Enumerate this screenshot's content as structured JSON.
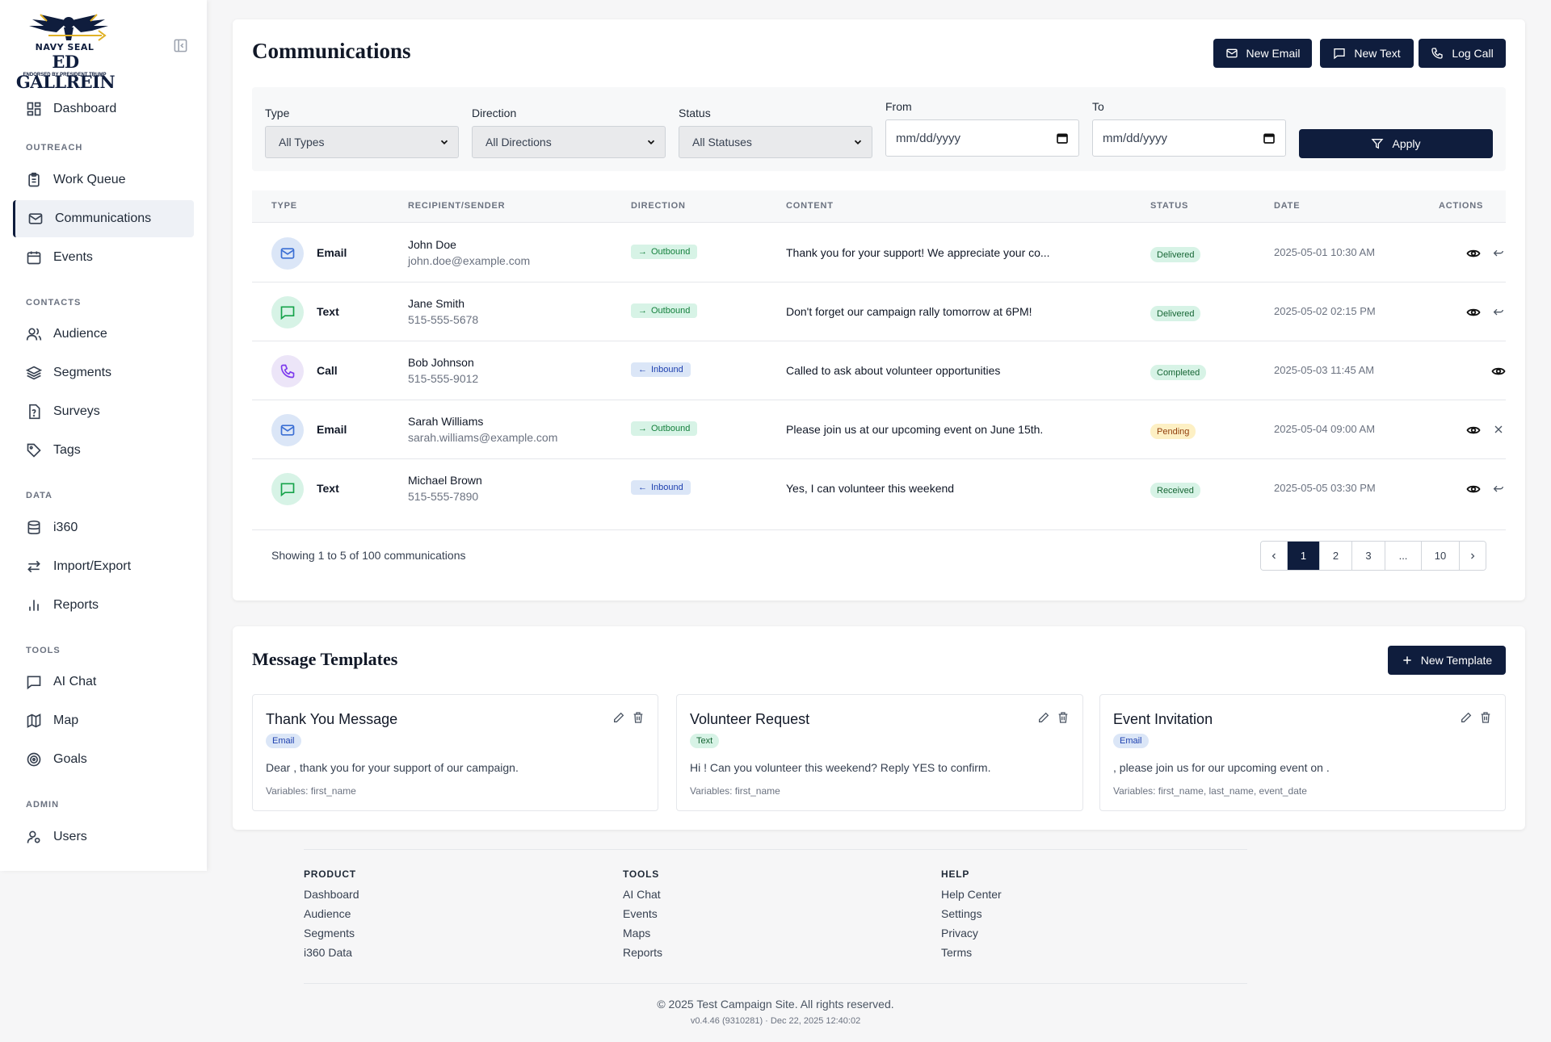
{
  "brand": {
    "line1": "NAVY SEAL",
    "line2": "ED GALLREIN",
    "line3": "ENDORSED BY PRESIDENT TRUMP"
  },
  "sidebar": {
    "items": [
      {
        "label": "Dashboard",
        "icon": "dashboard-icon"
      },
      {
        "label": "Work Queue",
        "icon": "clipboard-icon"
      },
      {
        "label": "Communications",
        "icon": "mail-icon"
      },
      {
        "label": "Events",
        "icon": "calendar-icon"
      },
      {
        "label": "Audience",
        "icon": "users-icon"
      },
      {
        "label": "Segments",
        "icon": "layers-icon"
      },
      {
        "label": "Surveys",
        "icon": "survey-icon"
      },
      {
        "label": "Tags",
        "icon": "tag-icon"
      },
      {
        "label": "i360",
        "icon": "database-icon"
      },
      {
        "label": "Import/Export",
        "icon": "arrows-icon"
      },
      {
        "label": "Reports",
        "icon": "bar-chart-icon"
      },
      {
        "label": "AI Chat",
        "icon": "chat-icon"
      },
      {
        "label": "Map",
        "icon": "map-icon"
      },
      {
        "label": "Goals",
        "icon": "target-icon"
      },
      {
        "label": "Users",
        "icon": "user-cog-icon"
      }
    ],
    "sections": {
      "outreach": "OUTREACH",
      "contacts": "CONTACTS",
      "data": "DATA",
      "tools": "TOOLS",
      "admin": "ADMIN"
    }
  },
  "comm": {
    "title": "Communications",
    "buttons": {
      "new_email": "New Email",
      "new_text": "New Text",
      "log_call": "Log Call"
    },
    "filters": {
      "type_label": "Type",
      "type_value": "All Types",
      "direction_label": "Direction",
      "direction_value": "All Directions",
      "status_label": "Status",
      "status_value": "All Statuses",
      "from_label": "From",
      "from_placeholder": "mm/dd/yyyy",
      "to_label": "To",
      "to_placeholder": "mm/dd/yyyy",
      "apply": "Apply"
    },
    "columns": [
      "TYPE",
      "RECIPIENT/SENDER",
      "DIRECTION",
      "CONTENT",
      "STATUS",
      "DATE",
      "ACTIONS"
    ],
    "rows": [
      {
        "type": "Email",
        "name": "John Doe",
        "sub": "john.doe@example.com",
        "direction": "Outbound",
        "content": "Thank you for your support! We appreciate your co...",
        "status": "Delivered",
        "date": "2025-05-01 10:30 AM"
      },
      {
        "type": "Text",
        "name": "Jane Smith",
        "sub": "515-555-5678",
        "direction": "Outbound",
        "content": "Don't forget our campaign rally tomorrow at 6PM!",
        "status": "Delivered",
        "date": "2025-05-02 02:15 PM"
      },
      {
        "type": "Call",
        "name": "Bob Johnson",
        "sub": "515-555-9012",
        "direction": "Inbound",
        "content": "Called to ask about volunteer opportunities",
        "status": "Completed",
        "date": "2025-05-03 11:45 AM"
      },
      {
        "type": "Email",
        "name": "Sarah Williams",
        "sub": "sarah.williams@example.com",
        "direction": "Outbound",
        "content": "Please join us at our upcoming event on June 15th.",
        "status": "Pending",
        "date": "2025-05-04 09:00 AM"
      },
      {
        "type": "Text",
        "name": "Michael Brown",
        "sub": "515-555-7890",
        "direction": "Inbound",
        "content": "Yes, I can volunteer this weekend",
        "status": "Received",
        "date": "2025-05-05 03:30 PM"
      }
    ],
    "showing": "Showing 1 to 5 of 100 communications",
    "pages": [
      "1",
      "2",
      "3",
      "...",
      "10"
    ]
  },
  "templates": {
    "title": "Message Templates",
    "new_button": "New Template",
    "items": [
      {
        "name": "Thank You Message",
        "badge": "Email",
        "body": "Dear , thank you for your support of our campaign.",
        "vars": "Variables: first_name"
      },
      {
        "name": "Volunteer Request",
        "badge": "Text",
        "body": "Hi ! Can you volunteer this weekend? Reply YES to confirm.",
        "vars": "Variables: first_name"
      },
      {
        "name": "Event Invitation",
        "badge": "Email",
        "body": ", please join us for our upcoming event on .",
        "vars": "Variables: first_name, last_name, event_date"
      }
    ]
  },
  "footer": {
    "product": {
      "head": "PRODUCT",
      "links": [
        "Dashboard",
        "Audience",
        "Segments",
        "i360 Data"
      ]
    },
    "tools": {
      "head": "TOOLS",
      "links": [
        "AI Chat",
        "Events",
        "Maps",
        "Reports"
      ]
    },
    "help": {
      "head": "HELP",
      "links": [
        "Help Center",
        "Settings",
        "Privacy",
        "Terms"
      ]
    },
    "copyright": "© 2025 Test Campaign Site. All rights reserved.",
    "version": "v0.4.46 (9310281) · Dec 22, 2025 12:40:02"
  },
  "colors": {
    "navy": "#0f1d3d",
    "email_bg": "#dbe6f7",
    "text_bg": "#d7f3e6",
    "call_bg": "#ece5f8",
    "pending": "#fdf0c4"
  }
}
